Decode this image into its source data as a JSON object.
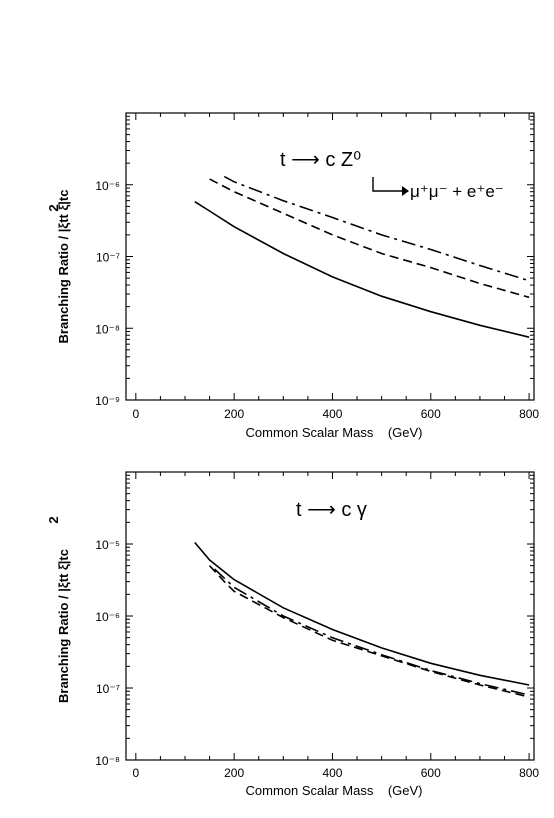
{
  "chart_data": [
    {
      "type": "line",
      "title": "",
      "annotation_main": "t ⟶ c Z⁰",
      "annotation_sub": "μ⁺μ⁻ + e⁺e⁻",
      "xlabel": "Common Scalar Mass    (GeV)",
      "ylabel": "Branching Ratio / |ξtt ξ̄|tc",
      "ylabel_exp": "2",
      "xlim": [
        -20,
        810
      ],
      "ylim": [
        1e-09,
        1e-05
      ],
      "yscale": "log",
      "xticks": [
        "0",
        "200",
        "400",
        "600",
        "800"
      ],
      "xtick_values": [
        0,
        200,
        400,
        600,
        800
      ],
      "yticks": [
        "10⁻⁹",
        "10⁻⁸",
        "10⁻⁷",
        "10⁻⁶"
      ],
      "ytick_values": [
        1e-09,
        1e-08,
        1e-07,
        1e-06
      ],
      "series": [
        {
          "style": "solid",
          "x": [
            120,
            150,
            200,
            300,
            400,
            500,
            600,
            700,
            800
          ],
          "y": [
            5.8e-07,
            4.3e-07,
            2.6e-07,
            1.1e-07,
            5.2e-08,
            2.8e-08,
            1.7e-08,
            1.1e-08,
            7.5e-09
          ]
        },
        {
          "style": "dashed",
          "x": [
            150,
            200,
            300,
            400,
            500,
            600,
            700,
            800
          ],
          "y": [
            1.2e-06,
            8e-07,
            4e-07,
            2e-07,
            1.1e-07,
            7e-08,
            4.2e-08,
            2.7e-08
          ]
        },
        {
          "style": "dashdot",
          "x": [
            180,
            200,
            300,
            400,
            500,
            600,
            700,
            800
          ],
          "y": [
            1.3e-06,
            1.1e-06,
            6e-07,
            3.5e-07,
            2e-07,
            1.25e-07,
            7.5e-08,
            4.6e-08
          ]
        }
      ]
    },
    {
      "type": "line",
      "title": "",
      "annotation_main": "t ⟶ c γ",
      "xlabel": "Common Scalar Mass    (GeV)",
      "ylabel": "Branching Ratio / |ξtt ξ̄|tc",
      "ylabel_exp": "2",
      "xlim": [
        -20,
        810
      ],
      "ylim": [
        1e-08,
        0.0001
      ],
      "yscale": "log",
      "xticks": [
        "0",
        "200",
        "400",
        "600",
        "800"
      ],
      "xtick_values": [
        0,
        200,
        400,
        600,
        800
      ],
      "yticks": [
        "10⁻⁸",
        "10⁻⁷",
        "10⁻⁶",
        "10⁻⁵"
      ],
      "ytick_values": [
        1e-08,
        1e-07,
        1e-06,
        1e-05
      ],
      "series": [
        {
          "style": "solid",
          "x": [
            120,
            150,
            200,
            300,
            400,
            500,
            600,
            700,
            800
          ],
          "y": [
            1.05e-05,
            6e-06,
            3.2e-06,
            1.3e-06,
            6.5e-07,
            3.6e-07,
            2.2e-07,
            1.5e-07,
            1.1e-07
          ]
        },
        {
          "style": "dashed",
          "x": [
            150,
            180,
            200,
            300,
            400,
            500,
            600,
            700,
            800
          ],
          "y": [
            5e-06,
            3e-06,
            2.2e-06,
            9.5e-07,
            4.6e-07,
            2.8e-07,
            1.7e-07,
            1.1e-07,
            7.5e-08
          ]
        },
        {
          "style": "dashdot",
          "x": [
            160,
            200,
            300,
            400,
            500,
            600,
            700,
            800
          ],
          "y": [
            4.5e-06,
            2.5e-06,
            1e-06,
            5e-07,
            2.9e-07,
            1.75e-07,
            1.15e-07,
            8e-08
          ]
        }
      ]
    }
  ]
}
